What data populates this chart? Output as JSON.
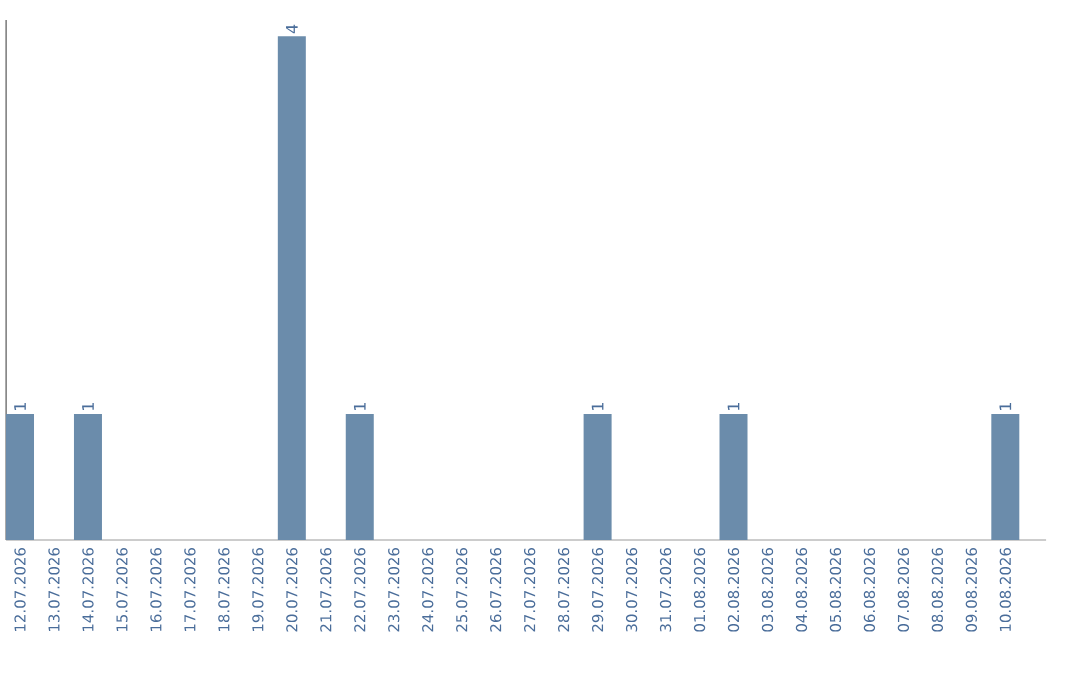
{
  "chart_data": {
    "type": "bar",
    "categories": [
      "12.07.2026",
      "13.07.2026",
      "14.07.2026",
      "15.07.2026",
      "16.07.2026",
      "17.07.2026",
      "18.07.2026",
      "19.07.2026",
      "20.07.2026",
      "21.07.2026",
      "22.07.2026",
      "23.07.2026",
      "24.07.2026",
      "25.07.2026",
      "26.07.2026",
      "27.07.2026",
      "28.07.2026",
      "29.07.2026",
      "30.07.2026",
      "31.07.2026",
      "01.08.2026",
      "02.08.2026",
      "03.08.2026",
      "04.08.2026",
      "05.08.2026",
      "06.08.2026",
      "07.08.2026",
      "08.08.2026",
      "09.08.2026",
      "10.08.2026"
    ],
    "values": [
      1,
      0,
      1,
      0,
      0,
      0,
      0,
      0,
      4,
      0,
      1,
      0,
      0,
      0,
      0,
      0,
      0,
      1,
      0,
      0,
      0,
      1,
      0,
      0,
      0,
      0,
      0,
      0,
      0,
      1
    ],
    "value_labels": [
      "1",
      null,
      "1",
      null,
      null,
      null,
      null,
      null,
      "4",
      null,
      "1",
      null,
      null,
      null,
      null,
      null,
      null,
      "1",
      null,
      null,
      null,
      "1",
      null,
      null,
      null,
      null,
      null,
      null,
      null,
      "1"
    ],
    "color": "#6b8cab",
    "ylim": [
      0,
      4.13
    ],
    "tick_labels": "x"
  }
}
